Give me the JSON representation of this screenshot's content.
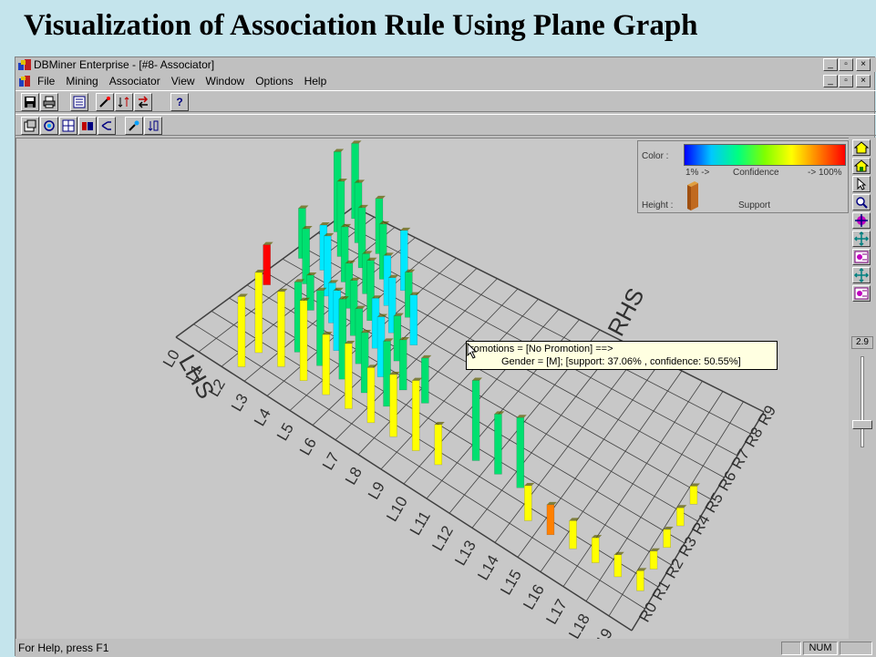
{
  "slide": {
    "title": "Visualization of Association Rule Using Plane Graph"
  },
  "window": {
    "title": "DBMiner Enterprise - [#8- Associator]",
    "buttons": {
      "minimize": "_",
      "restore": "▫",
      "close": "×"
    }
  },
  "menu": {
    "items": [
      "File",
      "Mining",
      "Associator",
      "View",
      "Window",
      "Options",
      "Help"
    ]
  },
  "toolbar1": {
    "icons": [
      "save-icon",
      "print-icon",
      "list-icon",
      "wand-icon",
      "arrows-icon",
      "rotate-icon",
      "help-icon"
    ],
    "help_label": "?"
  },
  "toolbar2": {
    "icons": [
      "properties-icon",
      "refresh-icon",
      "grid-icon",
      "cube-icon",
      "branch-icon",
      "filter-icon",
      "sort-icon"
    ]
  },
  "legend": {
    "color_label": "Color :",
    "color_min": "1% ->",
    "color_mid": "Confidence",
    "color_max": "-> 100%",
    "height_label": "Height :",
    "height_meaning": "Support"
  },
  "axes": {
    "lhs_title": "LHS",
    "rhs_title": "RHS",
    "lhs_labels": [
      "L0",
      "L1",
      "L2",
      "L3",
      "L4",
      "L5",
      "L6",
      "L7",
      "L8",
      "L9",
      "L10",
      "L11",
      "L12",
      "L13",
      "L14",
      "L15",
      "L16",
      "L17",
      "L18",
      "L19"
    ],
    "rhs_labels": [
      "R0",
      "R1",
      "R2",
      "R3",
      "R4",
      "R5",
      "R6",
      "R7",
      "R8",
      "R9"
    ]
  },
  "tooltip": {
    "line1": "romotions = [No Promotion] ==>",
    "line2": "Gender = [M]; [support: 37.06% , confidence: 50.55%]"
  },
  "colors": {
    "yellow": "#ffff00",
    "green": "#00e070",
    "cyan": "#00e8ff",
    "orange": "#ff8000",
    "red": "#ff0000"
  },
  "right_panel": {
    "icons": [
      "home-icon",
      "home-alt-icon",
      "pointer-icon",
      "zoom-icon",
      "move-icon",
      "pan-icon",
      "config-icon",
      "pan-alt-icon",
      "config-alt-icon"
    ],
    "zoom_value": "2.9",
    "slider_level": 0.75
  },
  "status": {
    "text": "For Help, press F1",
    "num": "NUM"
  }
}
